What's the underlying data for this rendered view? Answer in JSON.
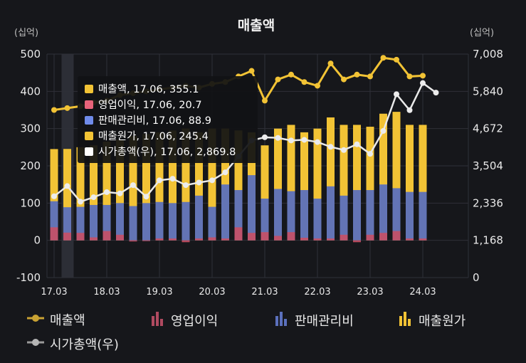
{
  "chart_data": {
    "type": "bar",
    "title": "매출액",
    "left_unit": "(십억)",
    "right_unit": "(십억)",
    "left_ticks": [
      "500",
      "400",
      "300",
      "200",
      "100",
      "0",
      "-100"
    ],
    "left_range": [
      -100,
      500
    ],
    "right_ticks": [
      "7,008",
      "5,840",
      "4,672",
      "3,504",
      "2,336",
      "1,168",
      "0"
    ],
    "right_range": [
      0,
      7008
    ],
    "x_ticks": [
      {
        "label": "17.03",
        "index": 0
      },
      {
        "label": "18.03",
        "index": 4
      },
      {
        "label": "19.03",
        "index": 8
      },
      {
        "label": "20.03",
        "index": 12
      },
      {
        "label": "21.03",
        "index": 16
      },
      {
        "label": "22.03",
        "index": 20
      },
      {
        "label": "23.03",
        "index": 24
      },
      {
        "label": "24.03",
        "index": 28
      }
    ],
    "highlight_index": 1,
    "series": [
      {
        "name": "매출액",
        "type": "line",
        "axis": "left",
        "color": "#f2c335",
        "values": [
          350,
          355.1,
          360,
          370,
          375,
          390,
          395,
          400,
          405,
          410,
          415,
          410,
          420,
          425,
          440,
          455,
          375,
          432,
          445,
          425,
          415,
          475,
          432,
          445,
          440,
          490,
          485,
          440,
          442
        ]
      },
      {
        "name": "영업이익",
        "type": "bar",
        "axis": "left",
        "color": "#c84f64",
        "values": [
          35,
          20.7,
          20,
          8,
          25,
          15,
          -3,
          -2,
          5,
          5,
          -5,
          5,
          8,
          5,
          35,
          20,
          22,
          12,
          22,
          7,
          5,
          5,
          15,
          -5,
          15,
          20,
          25,
          5,
          5
        ]
      },
      {
        "name": "판매관리비",
        "type": "bar",
        "axis": "left",
        "color": "#5b70bd",
        "values": [
          105,
          88.9,
          90,
          95,
          95,
          100,
          92,
          100,
          103,
          100,
          103,
          120,
          90,
          150,
          135,
          175,
          112,
          138,
          132,
          135,
          112,
          145,
          120,
          135,
          135,
          150,
          140,
          130,
          130
        ]
      },
      {
        "name": "매출원가",
        "type": "bar",
        "axis": "left",
        "color": "#f2c335",
        "values": [
          245,
          245.4,
          250,
          255,
          265,
          270,
          280,
          285,
          290,
          295,
          300,
          290,
          300,
          300,
          295,
          290,
          255,
          300,
          310,
          290,
          300,
          330,
          310,
          310,
          305,
          340,
          345,
          310,
          310
        ]
      },
      {
        "name": "시가총액(우)",
        "type": "line",
        "axis": "right",
        "color": "#e9e9e9",
        "values": [
          2550,
          2869.8,
          2380,
          2520,
          2680,
          2640,
          2900,
          2540,
          3050,
          3100,
          2900,
          2980,
          3050,
          3300,
          3800,
          4300,
          4400,
          4380,
          4300,
          4320,
          4250,
          4100,
          4000,
          4180,
          3880,
          4600,
          5750,
          5250,
          6100,
          5800
        ]
      }
    ],
    "tooltip": {
      "items": [
        {
          "color": "#f2c335",
          "text": "매출액, 17.06, 355.1"
        },
        {
          "color": "#e8637a",
          "text": "영업이익, 17.06, 20.7"
        },
        {
          "color": "#6f8bea",
          "text": "판매관리비, 17.06, 88.9"
        },
        {
          "color": "#f2c335",
          "text": "매출원가, 17.06, 245.4"
        },
        {
          "color": "#ffffff",
          "text": "시가총액(우), 17.06, 2,869.8"
        }
      ]
    }
  },
  "legend": [
    {
      "label": "매출액",
      "icon": "line-dot-icon",
      "color": "#c9a233"
    },
    {
      "label": "영업이익",
      "icon": "bar-icon",
      "color": "#b04a60"
    },
    {
      "label": "판매관리비",
      "icon": "bar-icon",
      "color": "#5b70bd"
    },
    {
      "label": "매출원가",
      "icon": "bar-icon",
      "color": "#f2c335"
    },
    {
      "label": "시가총액(우)",
      "icon": "line-dot-icon",
      "color": "#9a9a9a"
    }
  ]
}
